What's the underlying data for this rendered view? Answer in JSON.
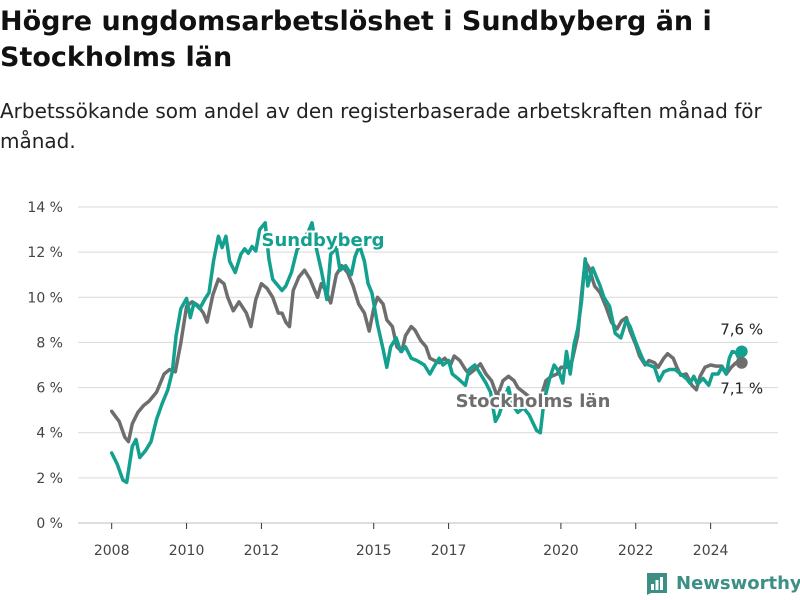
{
  "title": "Högre ungdomsarbetslöshet i Sundbyberg än i Stockholms län",
  "subtitle": "Arbetssökande som andel av den registerbaserade arbetskraften månad för månad.",
  "brand": {
    "name": "Newsworthy"
  },
  "colors": {
    "sundbyberg": "#13a08f",
    "stockholm": "#6e6e6e",
    "grid": "#d9d9d9",
    "brand": "#3d8f85"
  },
  "chart_data": {
    "type": "line",
    "title": "Högre ungdomsarbetslöshet i Sundbyberg än i Stockholms län",
    "subtitle": "Arbetssökande som andel av den registerbaserade arbetskraften månad för månad.",
    "xlabel": "",
    "ylabel": "",
    "x_ticks": [
      "2008",
      "2010",
      "2012",
      "2015",
      "2017",
      "2020",
      "2022",
      "2024"
    ],
    "x_tick_values": [
      2008,
      2010,
      2012,
      2015,
      2017,
      2020,
      2022,
      2024
    ],
    "xlim": [
      2007.1,
      2025.8
    ],
    "y_ticks": [
      "0 %",
      "2 %",
      "4 %",
      "6 %",
      "8 %",
      "10 %",
      "12 %",
      "14 %"
    ],
    "y_tick_values": [
      0,
      2,
      4,
      6,
      8,
      10,
      12,
      14
    ],
    "ylim": [
      0,
      14
    ],
    "grid": true,
    "legend": "inline labels",
    "series": [
      {
        "name": "Sundbyberg",
        "label_position": "top",
        "end_label": "7,6 %",
        "end_point": [
          2024.83,
          7.6
        ],
        "points": [
          [
            2008.0,
            3.1
          ],
          [
            2008.15,
            2.6
          ],
          [
            2008.3,
            1.9
          ],
          [
            2008.4,
            1.8
          ],
          [
            2008.55,
            3.4
          ],
          [
            2008.65,
            3.7
          ],
          [
            2008.75,
            2.9
          ],
          [
            2008.9,
            3.2
          ],
          [
            2009.05,
            3.6
          ],
          [
            2009.2,
            4.6
          ],
          [
            2009.35,
            5.3
          ],
          [
            2009.5,
            5.9
          ],
          [
            2009.62,
            6.7
          ],
          [
            2009.72,
            8.3
          ],
          [
            2009.85,
            9.5
          ],
          [
            2010.0,
            9.95
          ],
          [
            2010.1,
            9.1
          ],
          [
            2010.2,
            9.75
          ],
          [
            2010.35,
            9.5
          ],
          [
            2010.5,
            9.95
          ],
          [
            2010.6,
            10.2
          ],
          [
            2010.72,
            11.6
          ],
          [
            2010.85,
            12.7
          ],
          [
            2010.95,
            12.2
          ],
          [
            2011.05,
            12.7
          ],
          [
            2011.15,
            11.6
          ],
          [
            2011.3,
            11.1
          ],
          [
            2011.45,
            11.9
          ],
          [
            2011.55,
            12.15
          ],
          [
            2011.65,
            11.95
          ],
          [
            2011.75,
            12.25
          ],
          [
            2011.85,
            12.05
          ],
          [
            2011.95,
            13.0
          ],
          [
            2012.1,
            13.3
          ],
          [
            2012.2,
            11.7
          ],
          [
            2012.3,
            10.8
          ],
          [
            2012.45,
            10.5
          ],
          [
            2012.55,
            10.3
          ],
          [
            2012.65,
            10.5
          ],
          [
            2012.8,
            11.1
          ],
          [
            2012.95,
            12.1
          ],
          [
            2013.1,
            12.5
          ],
          [
            2013.25,
            12.9
          ],
          [
            2013.35,
            13.3
          ],
          [
            2013.45,
            12.3
          ],
          [
            2013.6,
            11.2
          ],
          [
            2013.75,
            9.9
          ],
          [
            2013.85,
            11.9
          ],
          [
            2014.0,
            12.2
          ],
          [
            2014.1,
            11.2
          ],
          [
            2014.25,
            11.4
          ],
          [
            2014.4,
            11.0
          ],
          [
            2014.5,
            11.8
          ],
          [
            2014.62,
            12.3
          ],
          [
            2014.75,
            11.6
          ],
          [
            2014.85,
            10.6
          ],
          [
            2014.95,
            10.2
          ],
          [
            2015.1,
            8.8
          ],
          [
            2015.25,
            7.7
          ],
          [
            2015.35,
            6.9
          ],
          [
            2015.45,
            7.8
          ],
          [
            2015.6,
            8.2
          ],
          [
            2015.72,
            7.6
          ],
          [
            2015.85,
            7.8
          ],
          [
            2016.0,
            7.3
          ],
          [
            2016.15,
            7.2
          ],
          [
            2016.35,
            7.0
          ],
          [
            2016.5,
            6.6
          ],
          [
            2016.6,
            6.9
          ],
          [
            2016.75,
            7.3
          ],
          [
            2016.85,
            7.0
          ],
          [
            2017.0,
            7.2
          ],
          [
            2017.1,
            6.6
          ],
          [
            2017.25,
            6.4
          ],
          [
            2017.45,
            6.1
          ],
          [
            2017.55,
            6.8
          ],
          [
            2017.7,
            7.0
          ],
          [
            2017.85,
            6.6
          ],
          [
            2018.0,
            6.2
          ],
          [
            2018.12,
            5.8
          ],
          [
            2018.25,
            4.5
          ],
          [
            2018.35,
            4.8
          ],
          [
            2018.5,
            5.6
          ],
          [
            2018.6,
            6.0
          ],
          [
            2018.72,
            5.2
          ],
          [
            2018.85,
            4.9
          ],
          [
            2019.0,
            5.1
          ],
          [
            2019.15,
            4.8
          ],
          [
            2019.35,
            4.1
          ],
          [
            2019.45,
            4.0
          ],
          [
            2019.55,
            5.4
          ],
          [
            2019.7,
            6.4
          ],
          [
            2019.82,
            7.0
          ],
          [
            2019.95,
            6.7
          ],
          [
            2020.05,
            6.2
          ],
          [
            2020.15,
            7.6
          ],
          [
            2020.25,
            6.6
          ],
          [
            2020.35,
            7.9
          ],
          [
            2020.45,
            8.6
          ],
          [
            2020.55,
            9.8
          ],
          [
            2020.65,
            11.7
          ],
          [
            2020.72,
            10.5
          ],
          [
            2020.85,
            11.3
          ],
          [
            2020.95,
            10.9
          ],
          [
            2021.05,
            10.5
          ],
          [
            2021.15,
            10.0
          ],
          [
            2021.3,
            9.6
          ],
          [
            2021.45,
            8.4
          ],
          [
            2021.6,
            8.2
          ],
          [
            2021.75,
            9.0
          ],
          [
            2021.85,
            8.7
          ],
          [
            2022.0,
            8.0
          ],
          [
            2022.15,
            7.4
          ],
          [
            2022.25,
            7.05
          ],
          [
            2022.35,
            7.0
          ],
          [
            2022.5,
            6.9
          ],
          [
            2022.62,
            6.3
          ],
          [
            2022.75,
            6.7
          ],
          [
            2022.9,
            6.8
          ],
          [
            2023.05,
            6.8
          ],
          [
            2023.2,
            6.6
          ],
          [
            2023.35,
            6.4
          ],
          [
            2023.45,
            6.2
          ],
          [
            2023.55,
            6.5
          ],
          [
            2023.65,
            6.15
          ],
          [
            2023.8,
            6.4
          ],
          [
            2023.95,
            6.1
          ],
          [
            2024.05,
            6.6
          ],
          [
            2024.2,
            6.6
          ],
          [
            2024.3,
            6.9
          ],
          [
            2024.42,
            6.6
          ],
          [
            2024.5,
            7.3
          ],
          [
            2024.58,
            7.6
          ],
          [
            2024.68,
            7.55
          ],
          [
            2024.75,
            7.3
          ],
          [
            2024.83,
            7.6
          ]
        ]
      },
      {
        "name": "Stockholms län",
        "label_position": "bottom",
        "end_label": "7,1 %",
        "end_point": [
          2024.83,
          7.1
        ],
        "points": [
          [
            2008.0,
            4.95
          ],
          [
            2008.2,
            4.5
          ],
          [
            2008.35,
            3.8
          ],
          [
            2008.45,
            3.6
          ],
          [
            2008.55,
            4.4
          ],
          [
            2008.7,
            4.9
          ],
          [
            2008.85,
            5.2
          ],
          [
            2009.0,
            5.4
          ],
          [
            2009.2,
            5.8
          ],
          [
            2009.4,
            6.6
          ],
          [
            2009.55,
            6.8
          ],
          [
            2009.7,
            6.7
          ],
          [
            2009.85,
            8.0
          ],
          [
            2010.0,
            9.6
          ],
          [
            2010.15,
            9.8
          ],
          [
            2010.3,
            9.65
          ],
          [
            2010.45,
            9.3
          ],
          [
            2010.55,
            8.9
          ],
          [
            2010.7,
            10.1
          ],
          [
            2010.85,
            10.8
          ],
          [
            2011.0,
            10.6
          ],
          [
            2011.1,
            10.0
          ],
          [
            2011.25,
            9.4
          ],
          [
            2011.4,
            9.8
          ],
          [
            2011.6,
            9.3
          ],
          [
            2011.72,
            8.7
          ],
          [
            2011.85,
            9.9
          ],
          [
            2012.0,
            10.6
          ],
          [
            2012.15,
            10.4
          ],
          [
            2012.3,
            10.0
          ],
          [
            2012.45,
            9.3
          ],
          [
            2012.55,
            9.3
          ],
          [
            2012.65,
            8.9
          ],
          [
            2012.75,
            8.7
          ],
          [
            2012.85,
            10.3
          ],
          [
            2013.0,
            10.9
          ],
          [
            2013.15,
            11.2
          ],
          [
            2013.3,
            10.8
          ],
          [
            2013.4,
            10.4
          ],
          [
            2013.5,
            10.0
          ],
          [
            2013.6,
            10.6
          ],
          [
            2013.7,
            10.35
          ],
          [
            2013.85,
            9.75
          ],
          [
            2014.0,
            11.0
          ],
          [
            2014.15,
            11.4
          ],
          [
            2014.3,
            11.1
          ],
          [
            2014.45,
            10.5
          ],
          [
            2014.6,
            9.7
          ],
          [
            2014.75,
            9.3
          ],
          [
            2014.88,
            8.5
          ],
          [
            2015.0,
            9.5
          ],
          [
            2015.1,
            10.0
          ],
          [
            2015.25,
            9.7
          ],
          [
            2015.35,
            9.0
          ],
          [
            2015.5,
            8.7
          ],
          [
            2015.62,
            7.8
          ],
          [
            2015.75,
            7.6
          ],
          [
            2015.85,
            8.3
          ],
          [
            2016.0,
            8.7
          ],
          [
            2016.1,
            8.55
          ],
          [
            2016.25,
            8.1
          ],
          [
            2016.4,
            7.8
          ],
          [
            2016.5,
            7.3
          ],
          [
            2016.62,
            7.2
          ],
          [
            2016.75,
            7.1
          ],
          [
            2016.9,
            7.3
          ],
          [
            2017.05,
            7.0
          ],
          [
            2017.15,
            7.4
          ],
          [
            2017.3,
            7.2
          ],
          [
            2017.45,
            6.8
          ],
          [
            2017.55,
            6.6
          ],
          [
            2017.7,
            6.8
          ],
          [
            2017.85,
            7.05
          ],
          [
            2018.0,
            6.6
          ],
          [
            2018.15,
            6.3
          ],
          [
            2018.3,
            5.6
          ],
          [
            2018.45,
            6.3
          ],
          [
            2018.6,
            6.5
          ],
          [
            2018.75,
            6.3
          ],
          [
            2018.85,
            6.0
          ],
          [
            2019.0,
            5.8
          ],
          [
            2019.15,
            5.6
          ],
          [
            2019.3,
            5.4
          ],
          [
            2019.45,
            5.5
          ],
          [
            2019.6,
            6.3
          ],
          [
            2019.75,
            6.5
          ],
          [
            2019.9,
            6.6
          ],
          [
            2020.0,
            6.9
          ],
          [
            2020.15,
            6.9
          ],
          [
            2020.3,
            7.2
          ],
          [
            2020.45,
            8.3
          ],
          [
            2020.55,
            10.1
          ],
          [
            2020.65,
            11.6
          ],
          [
            2020.75,
            11.3
          ],
          [
            2020.9,
            10.5
          ],
          [
            2021.05,
            10.2
          ],
          [
            2021.2,
            9.6
          ],
          [
            2021.35,
            8.9
          ],
          [
            2021.5,
            8.6
          ],
          [
            2021.62,
            8.95
          ],
          [
            2021.75,
            9.1
          ],
          [
            2021.85,
            8.5
          ],
          [
            2022.0,
            7.9
          ],
          [
            2022.1,
            7.4
          ],
          [
            2022.25,
            7.0
          ],
          [
            2022.35,
            7.2
          ],
          [
            2022.5,
            7.1
          ],
          [
            2022.6,
            6.9
          ],
          [
            2022.75,
            7.3
          ],
          [
            2022.85,
            7.5
          ],
          [
            2023.0,
            7.3
          ],
          [
            2023.1,
            6.9
          ],
          [
            2023.2,
            6.55
          ],
          [
            2023.35,
            6.6
          ],
          [
            2023.5,
            6.1
          ],
          [
            2023.62,
            5.9
          ],
          [
            2023.72,
            6.5
          ],
          [
            2023.85,
            6.9
          ],
          [
            2024.0,
            7.0
          ],
          [
            2024.15,
            6.95
          ],
          [
            2024.3,
            6.95
          ],
          [
            2024.42,
            6.6
          ],
          [
            2024.55,
            6.9
          ],
          [
            2024.68,
            7.1
          ],
          [
            2024.83,
            7.1
          ]
        ]
      }
    ]
  }
}
